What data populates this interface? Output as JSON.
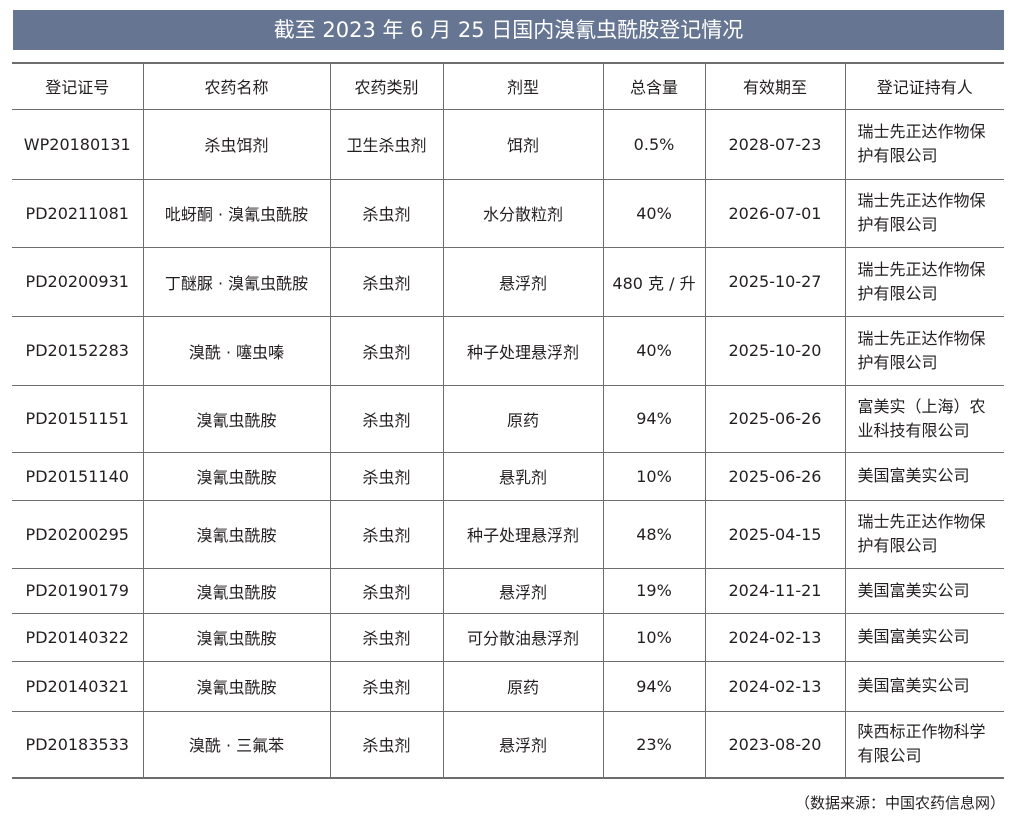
{
  "title": "截至 2023 年 6 月 25 日国内溴氰虫酰胺登记情况",
  "headers": [
    "登记证号",
    "农药名称",
    "农药类别",
    "剂型",
    "总含量",
    "有效期至",
    "登记证持有人"
  ],
  "rows": [
    [
      "WP20180131",
      "杀虫饵剂",
      "卫生杀虫剂",
      "饵剂",
      "0.5%",
      "2028-07-23",
      "瑞士先正达作物保护有限公司"
    ],
    [
      "PD20211081",
      "吡蚜酮 · 溴氰虫酰胺",
      "杀虫剂",
      "水分散粒剂",
      "40%",
      "2026-07-01",
      "瑞士先正达作物保护有限公司"
    ],
    [
      "PD20200931",
      "丁醚脲 · 溴氰虫酰胺",
      "杀虫剂",
      "悬浮剂",
      "480 克 / 升",
      "2025-10-27",
      "瑞士先正达作物保护有限公司"
    ],
    [
      "PD20152283",
      "溴酰 · 噻虫嗪",
      "杀虫剂",
      "种子处理悬浮剂",
      "40%",
      "2025-10-20",
      "瑞士先正达作物保护有限公司"
    ],
    [
      "PD20151151",
      "溴氰虫酰胺",
      "杀虫剂",
      "原药",
      "94%",
      "2025-06-26",
      "富美实（上海）农业科技有限公司"
    ],
    [
      "PD20151140",
      "溴氰虫酰胺",
      "杀虫剂",
      "悬乳剂",
      "10%",
      "2025-06-26",
      "美国富美实公司"
    ],
    [
      "PD20200295",
      "溴氰虫酰胺",
      "杀虫剂",
      "种子处理悬浮剂",
      "48%",
      "2025-04-15",
      "瑞士先正达作物保护有限公司"
    ],
    [
      "PD20190179",
      "溴氰虫酰胺",
      "杀虫剂",
      "悬浮剂",
      "19%",
      "2024-11-21",
      "美国富美实公司"
    ],
    [
      "PD20140322",
      "溴氰虫酰胺",
      "杀虫剂",
      "可分散油悬浮剂",
      "10%",
      "2024-02-13",
      "美国富美实公司"
    ],
    [
      "PD20140321",
      "溴氰虫酰胺",
      "杀虫剂",
      "原药",
      "94%",
      "2024-02-13",
      "美国富美实公司"
    ],
    [
      "PD20183533",
      "溴酰 · 三氟苯",
      "杀虫剂",
      "悬浮剂",
      "23%",
      "2023-08-20",
      "陕西标正作物科学有限公司"
    ]
  ],
  "source": "（数据来源：中国农药信息网）",
  "colors": {
    "title_bar": "#667592"
  }
}
